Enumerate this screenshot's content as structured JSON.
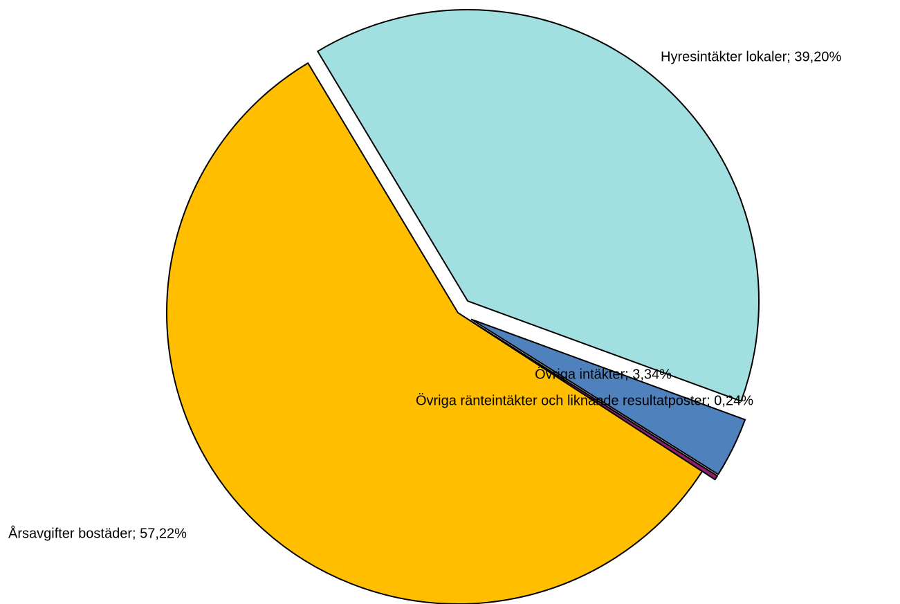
{
  "chart_data": {
    "type": "pie",
    "values": [
      39.2,
      3.34,
      0.24,
      57.22
    ],
    "value_labels": [
      "Hyresintäkter lokaler; 39,20%",
      "Övriga intäkter; 3,34%",
      "Övriga ränteintäkter och liknande resultatposter; 0,24%",
      "Årsavgifter bostäder; 57,22%"
    ],
    "colors": [
      "#a1dfe0",
      "#4f81bd",
      "#8e1f6e",
      "#ffbf00"
    ]
  }
}
